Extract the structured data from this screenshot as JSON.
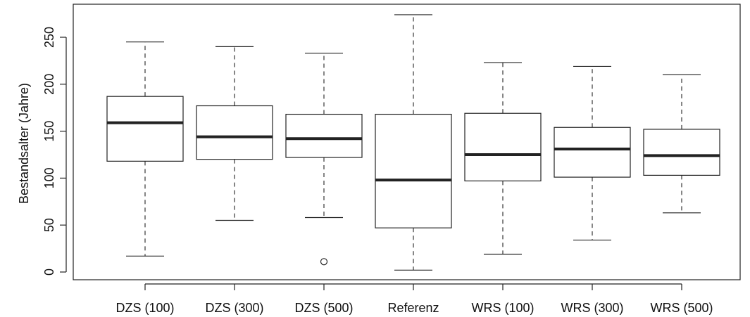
{
  "chart_data": {
    "type": "boxplot",
    "title": "",
    "xlabel": "",
    "ylabel": "Bestandsalter (Jahre)",
    "ylim": [
      -10,
      280
    ],
    "yticks": [
      0,
      50,
      100,
      150,
      200,
      250
    ],
    "grid": false,
    "categories": [
      "DZS (100)",
      "DZS (300)",
      "DZS (500)",
      "Referenz",
      "WRS (100)",
      "WRS (300)",
      "WRS (500)"
    ],
    "boxes": [
      {
        "category": "DZS (100)",
        "whisker_low": 17,
        "q1": 118,
        "median": 159,
        "q3": 187,
        "whisker_high": 245,
        "outliers": []
      },
      {
        "category": "DZS (300)",
        "whisker_low": 55,
        "q1": 120,
        "median": 144,
        "q3": 177,
        "whisker_high": 240,
        "outliers": []
      },
      {
        "category": "DZS (500)",
        "whisker_low": 58,
        "q1": 122,
        "median": 142,
        "q3": 168,
        "whisker_high": 233,
        "outliers": [
          11
        ]
      },
      {
        "category": "Referenz",
        "whisker_low": 2,
        "q1": 47,
        "median": 98,
        "q3": 168,
        "whisker_high": 274,
        "outliers": []
      },
      {
        "category": "WRS (100)",
        "whisker_low": 19,
        "q1": 97,
        "median": 125,
        "q3": 169,
        "whisker_high": 223,
        "outliers": []
      },
      {
        "category": "WRS (300)",
        "whisker_low": 34,
        "q1": 101,
        "median": 131,
        "q3": 154,
        "whisker_high": 219,
        "outliers": []
      },
      {
        "category": "WRS (500)",
        "whisker_low": 63,
        "q1": 103,
        "median": 124,
        "q3": 152,
        "whisker_high": 210,
        "outliers": []
      }
    ]
  }
}
